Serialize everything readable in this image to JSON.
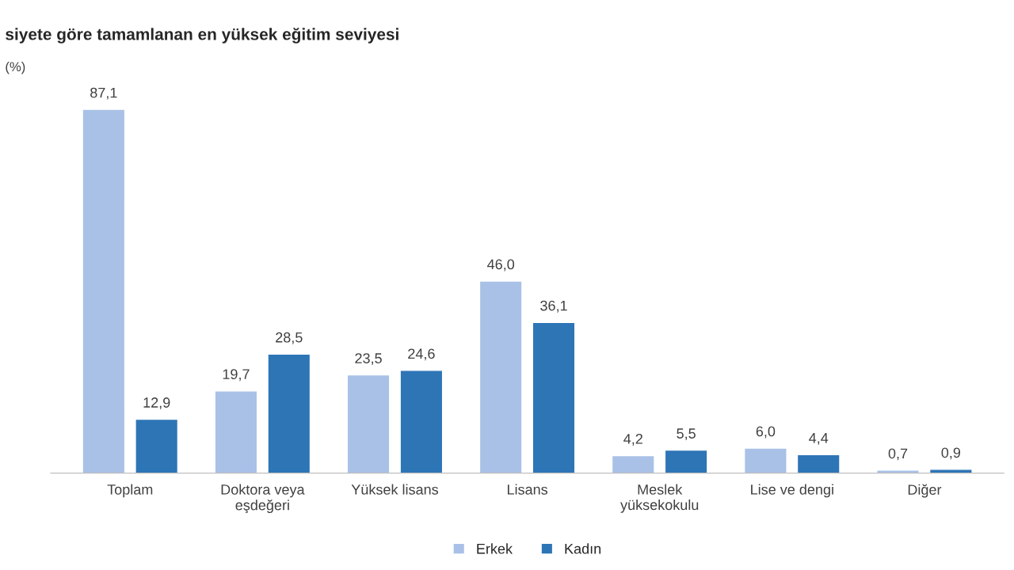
{
  "chart_data": {
    "type": "bar",
    "title": "siyete göre tamamlanan en yüksek eğitim seviyesi",
    "ylabel": "(%)",
    "categories": [
      "Toplam",
      "Doktora veya\neşdeğeri",
      "Yüksek lisans",
      "Lisans",
      "Meslek\nyüksekokulu",
      "Lise ve dengi",
      "Diğer"
    ],
    "series": [
      {
        "name": "Erkek",
        "color": "#a9c1e6",
        "values": [
          87.1,
          19.7,
          23.5,
          46.0,
          4.2,
          6.0,
          0.7
        ],
        "value_labels": [
          "87,1",
          "19,7",
          "23,5",
          "46,0",
          "4,2",
          "6,0",
          "0,7"
        ]
      },
      {
        "name": "Kadın",
        "color": "#2e75b6",
        "values": [
          12.9,
          28.5,
          24.6,
          36.1,
          5.5,
          4.4,
          0.9
        ],
        "value_labels": [
          "12,9",
          "28,5",
          "24,6",
          "36,1",
          "5,5",
          "4,4",
          "0,9"
        ]
      }
    ],
    "tick_labels": "x",
    "legend": "bottom"
  }
}
